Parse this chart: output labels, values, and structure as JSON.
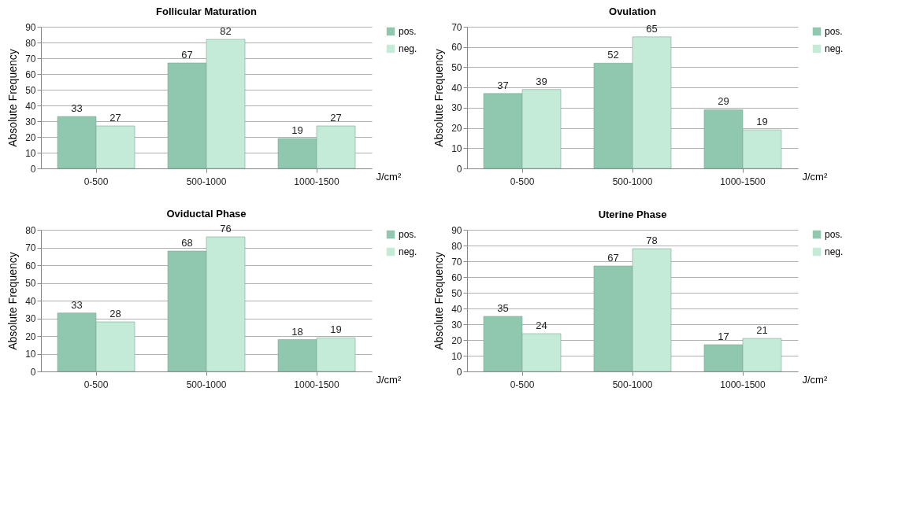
{
  "chart_data": [
    {
      "type": "bar",
      "title": "Follicular Maturation",
      "xlabel": "J/cm²",
      "ylabel": "Absolute Frequency",
      "categories": [
        "0-500",
        "500-1000",
        "1000-1500"
      ],
      "series": [
        {
          "name": "pos.",
          "color": "#8fc8ae",
          "values": [
            33,
            67,
            19
          ]
        },
        {
          "name": "neg.",
          "color": "#c4ead8",
          "values": [
            27,
            82,
            27
          ]
        }
      ],
      "ylim": [
        0,
        90
      ],
      "yticks": [
        0,
        10,
        20,
        30,
        40,
        50,
        60,
        70,
        80,
        90
      ],
      "grid": "y",
      "legend": "right",
      "data_labels": true
    },
    {
      "type": "bar",
      "title": "Ovulation",
      "xlabel": "J/cm²",
      "ylabel": "Absolute Frequency",
      "categories": [
        "0-500",
        "500-1000",
        "1000-1500"
      ],
      "series": [
        {
          "name": "pos.",
          "color": "#8fc8ae",
          "values": [
            37,
            52,
            29
          ]
        },
        {
          "name": "neg.",
          "color": "#c4ead8",
          "values": [
            39,
            65,
            19
          ]
        }
      ],
      "ylim": [
        0,
        70
      ],
      "yticks": [
        0,
        10,
        20,
        30,
        40,
        50,
        60,
        70
      ],
      "grid": "y",
      "legend": "right",
      "data_labels": true
    },
    {
      "type": "bar",
      "title": "Oviductal Phase",
      "xlabel": "J/cm²",
      "ylabel": "Absolute Frequency",
      "categories": [
        "0-500",
        "500-1000",
        "1000-1500"
      ],
      "series": [
        {
          "name": "pos.",
          "color": "#8fc8ae",
          "values": [
            33,
            68,
            18
          ]
        },
        {
          "name": "neg.",
          "color": "#c4ead8",
          "values": [
            28,
            76,
            19
          ]
        }
      ],
      "ylim": [
        0,
        80
      ],
      "yticks": [
        0,
        10,
        20,
        30,
        40,
        50,
        60,
        70,
        80
      ],
      "grid": "y",
      "legend": "right",
      "data_labels": true
    },
    {
      "type": "bar",
      "title": "Uterine Phase",
      "xlabel": "J/cm²",
      "ylabel": "Absolute Frequency",
      "categories": [
        "0-500",
        "500-1000",
        "1000-1500"
      ],
      "series": [
        {
          "name": "pos.",
          "color": "#8fc8ae",
          "values": [
            35,
            67,
            17
          ]
        },
        {
          "name": "neg.",
          "color": "#c4ead8",
          "values": [
            24,
            78,
            21
          ]
        }
      ],
      "ylim": [
        0,
        90
      ],
      "yticks": [
        0,
        10,
        20,
        30,
        40,
        50,
        60,
        70,
        80,
        90
      ],
      "grid": "y",
      "legend": "right",
      "data_labels": true
    }
  ]
}
